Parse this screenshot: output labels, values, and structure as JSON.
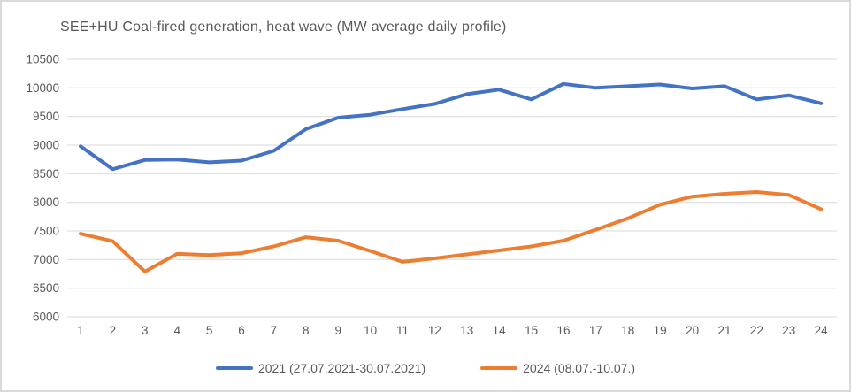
{
  "window": {
    "background": "#ffffff",
    "border_color": "#d9d9d9"
  },
  "chart_data": {
    "type": "line",
    "title": "SEE+HU Coal-fired generation, heat wave (MW average daily profile)",
    "xlabel": "",
    "ylabel": "",
    "x": [
      1,
      2,
      3,
      4,
      5,
      6,
      7,
      8,
      9,
      10,
      11,
      12,
      13,
      14,
      15,
      16,
      17,
      18,
      19,
      20,
      21,
      22,
      23,
      24
    ],
    "ylim": [
      6000,
      10500
    ],
    "ytick_step": 500,
    "grid": "horizontal",
    "legend_position": "bottom",
    "title_color": "#595959",
    "axis_text_color": "#595959",
    "gridline_color": "#d9d9d9",
    "series": [
      {
        "name": "2021 (27.07.2021-30.07.2021)",
        "color": "#4472C4",
        "values": [
          8980,
          8580,
          8740,
          8750,
          8700,
          8730,
          8900,
          9280,
          9480,
          9530,
          9630,
          9720,
          9890,
          9970,
          9800,
          10070,
          10000,
          10030,
          10060,
          9990,
          10030,
          9800,
          9870,
          9730
        ]
      },
      {
        "name": "2024 (08.07.-10.07.)",
        "color": "#ED7D31",
        "values": [
          7450,
          7320,
          6790,
          7100,
          7080,
          7110,
          7230,
          7390,
          7330,
          7150,
          6960,
          7020,
          7090,
          7160,
          7230,
          7330,
          7520,
          7720,
          7960,
          8100,
          8150,
          8180,
          8130,
          7880
        ]
      }
    ]
  }
}
